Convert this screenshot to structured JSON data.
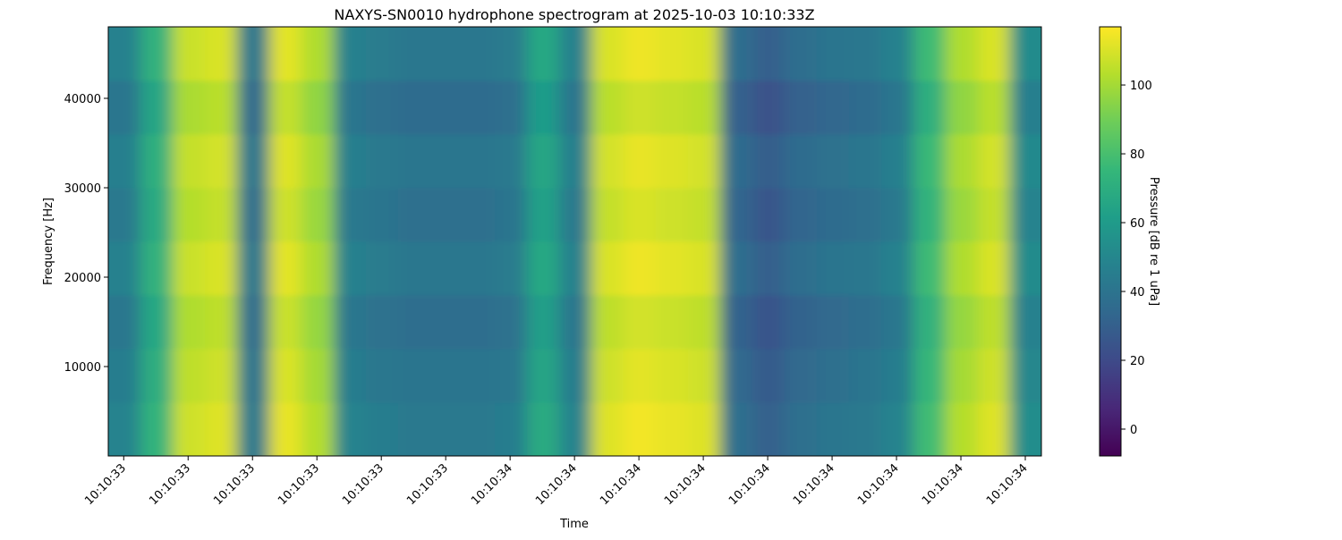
{
  "chart_data": {
    "type": "heatmap",
    "title": "NAXYS-SN0010 hydrophone spectrogram at 2025-10-03 10:10:33Z",
    "xlabel": "Time",
    "ylabel": "Frequency [Hz]",
    "x": [
      33.401,
      33.451,
      33.501,
      33.551,
      33.601,
      33.651,
      33.701,
      33.751,
      33.801,
      33.851,
      33.901,
      33.951,
      34.001,
      34.051,
      34.101,
      34.151,
      34.201,
      34.251,
      34.301,
      34.351,
      34.401,
      34.451,
      34.501,
      34.551,
      34.601,
      34.651,
      34.701,
      34.751,
      34.801
    ],
    "y": [
      3000,
      9000,
      15000,
      21000,
      27000,
      33000,
      39000,
      45000
    ],
    "z": [
      [
        48,
        73,
        108,
        111,
        43,
        113,
        103,
        48,
        45,
        43,
        43,
        43,
        45,
        68,
        48,
        111,
        115,
        113,
        111,
        38,
        31,
        38,
        41,
        43,
        48,
        78,
        103,
        111,
        53
      ],
      [
        45,
        70,
        105,
        108,
        40,
        110,
        100,
        45,
        42,
        40,
        40,
        40,
        42,
        65,
        45,
        108,
        112,
        110,
        108,
        35,
        28,
        35,
        38,
        40,
        45,
        75,
        100,
        108,
        50
      ],
      [
        42,
        67,
        102,
        105,
        37,
        107,
        97,
        42,
        39,
        37,
        37,
        37,
        39,
        62,
        42,
        105,
        109,
        107,
        105,
        32,
        25,
        32,
        35,
        37,
        42,
        72,
        97,
        105,
        47
      ],
      [
        47,
        72,
        107,
        110,
        42,
        112,
        102,
        47,
        44,
        42,
        42,
        42,
        44,
        67,
        47,
        110,
        114,
        112,
        110,
        37,
        30,
        37,
        40,
        42,
        47,
        77,
        102,
        110,
        52
      ],
      [
        43,
        68,
        103,
        106,
        38,
        108,
        98,
        43,
        40,
        38,
        38,
        38,
        40,
        63,
        43,
        106,
        110,
        108,
        106,
        33,
        26,
        33,
        36,
        38,
        43,
        73,
        98,
        106,
        48
      ],
      [
        46,
        71,
        106,
        109,
        41,
        111,
        101,
        46,
        43,
        41,
        41,
        41,
        43,
        66,
        46,
        109,
        113,
        111,
        109,
        36,
        29,
        36,
        39,
        41,
        46,
        76,
        101,
        109,
        51
      ],
      [
        41,
        66,
        101,
        104,
        36,
        106,
        96,
        41,
        38,
        36,
        36,
        36,
        38,
        61,
        41,
        104,
        108,
        106,
        104,
        31,
        24,
        31,
        34,
        36,
        41,
        71,
        96,
        104,
        46
      ],
      [
        47,
        72,
        107,
        110,
        42,
        112,
        102,
        47,
        44,
        42,
        42,
        42,
        44,
        67,
        47,
        110,
        114,
        112,
        110,
        37,
        30,
        37,
        40,
        42,
        47,
        77,
        102,
        110,
        52
      ]
    ],
    "colormap": "viridis",
    "xlim": [
      33.376,
      34.825
    ],
    "xticks": [
      {
        "value": 33.4,
        "label": "10:10:33"
      },
      {
        "value": 33.5,
        "label": "10:10:33"
      },
      {
        "value": 33.6,
        "label": "10:10:33"
      },
      {
        "value": 33.7,
        "label": "10:10:33"
      },
      {
        "value": 33.8,
        "label": "10:10:33"
      },
      {
        "value": 33.9,
        "label": "10:10:33"
      },
      {
        "value": 34.0,
        "label": "10:10:34"
      },
      {
        "value": 34.1,
        "label": "10:10:34"
      },
      {
        "value": 34.2,
        "label": "10:10:34"
      },
      {
        "value": 34.3,
        "label": "10:10:34"
      },
      {
        "value": 34.4,
        "label": "10:10:34"
      },
      {
        "value": 34.5,
        "label": "10:10:34"
      },
      {
        "value": 34.6,
        "label": "10:10:34"
      },
      {
        "value": 34.7,
        "label": "10:10:34"
      },
      {
        "value": 34.8,
        "label": "10:10:34"
      }
    ],
    "ylim": [
      0,
      48000
    ],
    "yticks": [
      10000,
      20000,
      30000,
      40000
    ],
    "colorbar": {
      "label": "Pressure [dB re 1 uPa]",
      "lim": [
        -7.8,
        116.9
      ],
      "ticks": [
        0,
        20,
        40,
        60,
        80,
        100
      ]
    }
  }
}
